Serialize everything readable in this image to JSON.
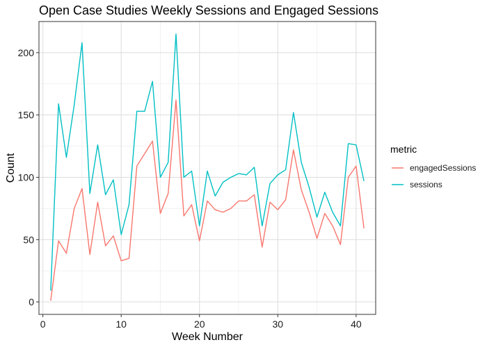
{
  "chart_data": {
    "type": "line",
    "title": "Open Case Studies Weekly Sessions and Engaged Sessions",
    "xlabel": "Week Number",
    "ylabel": "Count",
    "xlim": [
      -0.5,
      42.5
    ],
    "ylim": [
      -10,
      225
    ],
    "x_ticks": [
      0,
      10,
      20,
      30,
      40
    ],
    "y_ticks": [
      0,
      50,
      100,
      150,
      200
    ],
    "x_minor": [
      5,
      15,
      25,
      35
    ],
    "y_minor": [
      25,
      75,
      125,
      175
    ],
    "grid": true,
    "legend": {
      "title": "metric",
      "position": "right"
    },
    "x": [
      1,
      2,
      3,
      4,
      5,
      6,
      7,
      8,
      9,
      10,
      11,
      12,
      13,
      14,
      15,
      16,
      17,
      18,
      19,
      20,
      21,
      22,
      23,
      24,
      25,
      26,
      27,
      28,
      29,
      30,
      31,
      32,
      33,
      34,
      35,
      36,
      37,
      38,
      39,
      40,
      41
    ],
    "series": [
      {
        "name": "engagedSessions",
        "color": "#F8766D",
        "values": [
          1,
          49,
          39,
          75,
          91,
          38,
          80,
          45,
          53,
          33,
          35,
          109,
          119,
          129,
          71,
          87,
          162,
          69,
          78,
          49,
          81,
          74,
          72,
          75,
          81,
          81,
          86,
          44,
          80,
          74,
          82,
          122,
          90,
          72,
          51,
          71,
          61,
          46,
          100,
          109,
          59
        ]
      },
      {
        "name": "sessions",
        "color": "#00BFC4",
        "values": [
          9,
          159,
          116,
          158,
          208,
          87,
          126,
          86,
          98,
          54,
          78,
          153,
          153,
          177,
          100,
          112,
          215,
          100,
          105,
          61,
          105,
          85,
          96,
          100,
          103,
          102,
          108,
          61,
          95,
          102,
          106,
          152,
          112,
          92,
          68,
          88,
          72,
          61,
          127,
          126,
          97
        ]
      }
    ]
  }
}
